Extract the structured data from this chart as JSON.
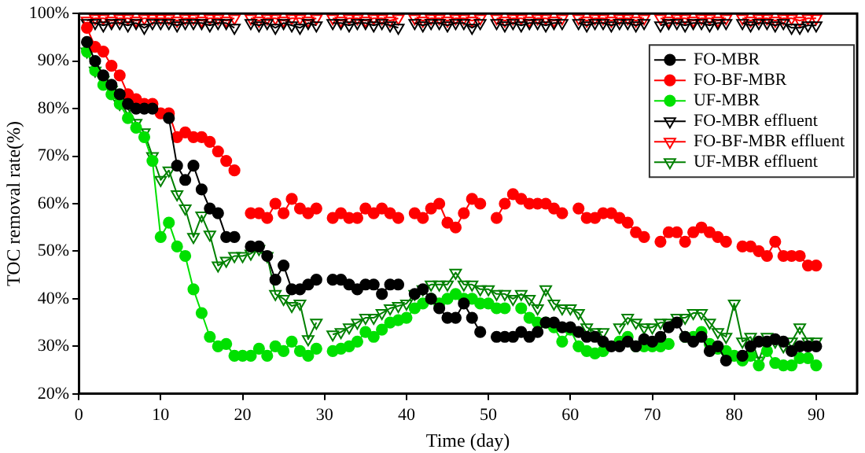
{
  "chart_data": {
    "type": "line",
    "xlabel": "Time (day)",
    "ylabel": "TOC removal rate(%)",
    "xlim": [
      0,
      95
    ],
    "xticks": [
      0,
      10,
      20,
      30,
      40,
      50,
      60,
      70,
      80,
      90
    ],
    "ylim": [
      20,
      100
    ],
    "yticks": [
      {
        "value": 20,
        "label": "20%"
      },
      {
        "value": 30,
        "label": "30%"
      },
      {
        "value": 40,
        "label": "40%"
      },
      {
        "value": 50,
        "label": "50%"
      },
      {
        "value": 60,
        "label": "60%"
      },
      {
        "value": 70,
        "label": "70%"
      },
      {
        "value": 80,
        "label": "80%"
      },
      {
        "value": 90,
        "label": "90%"
      },
      {
        "value": 100,
        "label": "100%"
      }
    ],
    "grid": false,
    "legend": "top right",
    "line_style": "solid",
    "x": [
      1,
      2,
      3,
      4,
      5,
      6,
      7,
      8,
      9,
      10,
      11,
      12,
      13,
      14,
      15,
      16,
      17,
      18,
      19,
      20,
      21,
      22,
      23,
      24,
      25,
      26,
      27,
      28,
      29,
      30,
      31,
      32,
      33,
      34,
      35,
      36,
      37,
      38,
      39,
      40,
      41,
      42,
      43,
      44,
      45,
      46,
      47,
      48,
      49,
      50,
      51,
      52,
      53,
      54,
      55,
      56,
      57,
      58,
      59,
      60,
      61,
      62,
      63,
      64,
      65,
      66,
      67,
      68,
      69,
      70,
      71,
      72,
      73,
      74,
      75,
      76,
      77,
      78,
      79,
      80,
      81,
      82,
      83,
      84,
      85,
      86,
      87,
      88,
      89,
      90
    ],
    "series": [
      {
        "name": "FO-MBR",
        "color": "#000000",
        "marker": "circle",
        "values": [
          94,
          90,
          87,
          85,
          83,
          81,
          80,
          80,
          80,
          null,
          78,
          68,
          65,
          68,
          63,
          59,
          58,
          53,
          53,
          null,
          51,
          51,
          49,
          44,
          47,
          42,
          42,
          43,
          44,
          null,
          44,
          44,
          43,
          42,
          43,
          43,
          41,
          43,
          43,
          null,
          41,
          42,
          40,
          38,
          36,
          36,
          39,
          36,
          33,
          null,
          32,
          32,
          32,
          33,
          32,
          33,
          35,
          35,
          34,
          34,
          33,
          32,
          32,
          31,
          30,
          30,
          31,
          30,
          31.5,
          31,
          32,
          34,
          35,
          32,
          31,
          32,
          29,
          30,
          27,
          null,
          28,
          30,
          31,
          31,
          31.5,
          31,
          29,
          30,
          30,
          30
        ]
      },
      {
        "name": "FO-BF-MBR",
        "color": "#ff0000",
        "marker": "circle",
        "values": [
          97,
          93,
          92,
          89,
          87,
          83,
          82,
          81,
          81,
          79,
          79,
          74,
          75,
          74,
          74,
          73,
          71,
          69,
          67,
          null,
          58,
          58,
          57,
          60,
          58,
          61,
          59,
          58,
          59,
          null,
          57,
          58,
          57,
          57,
          59,
          58,
          59,
          58,
          57,
          null,
          58,
          57,
          59,
          60,
          56,
          55,
          58,
          61,
          60,
          null,
          57,
          60,
          62,
          61,
          60,
          60,
          60,
          59,
          58,
          null,
          59,
          57,
          57,
          58,
          58,
          57,
          56,
          54,
          53,
          null,
          52,
          54,
          54,
          52,
          54,
          55,
          54,
          53,
          52,
          null,
          51,
          51,
          50,
          49,
          52,
          49,
          49,
          49,
          47,
          47
        ]
      },
      {
        "name": "UF-MBR",
        "color": "#00e000",
        "marker": "circle",
        "values": [
          92,
          88,
          85,
          83,
          81,
          78,
          76,
          74,
          69,
          53,
          56,
          51,
          49,
          42,
          37,
          32,
          30,
          30.5,
          28,
          28,
          28,
          29.5,
          28,
          30,
          29,
          31,
          29,
          28,
          29.5,
          null,
          29,
          29.5,
          30,
          31,
          33,
          32,
          33.5,
          35,
          35.5,
          36,
          38,
          39,
          40,
          39,
          40,
          41,
          40,
          40,
          39,
          39,
          38,
          38,
          null,
          38,
          36,
          35,
          35,
          34,
          31,
          33.5,
          30,
          29,
          28.5,
          29,
          null,
          31,
          32,
          30,
          30,
          30,
          30,
          30.5,
          null,
          32,
          32,
          33,
          30.5,
          29.5,
          29,
          28,
          27,
          28,
          26,
          29,
          26.5,
          26,
          26,
          27.5,
          27.5,
          26
        ]
      },
      {
        "name": "FO-MBR effluent",
        "color": "#000000",
        "marker": "triangle",
        "values": [
          98,
          98,
          97.5,
          98,
          98,
          97.5,
          98,
          97,
          98,
          98,
          98,
          97.5,
          98,
          98,
          98,
          97.5,
          98,
          98,
          97,
          null,
          98,
          97.5,
          98,
          97,
          98,
          97.5,
          97,
          98,
          97.5,
          null,
          98,
          98,
          97.5,
          98,
          98,
          97.5,
          98,
          97.5,
          97,
          null,
          98,
          97.5,
          98,
          98,
          97.5,
          98,
          98,
          97,
          98,
          null,
          98,
          97.5,
          98,
          97.5,
          98,
          98,
          97.5,
          98,
          98,
          null,
          98,
          97.5,
          98,
          98,
          97.5,
          98,
          98,
          97.5,
          98,
          null,
          97.5,
          98,
          98,
          97.5,
          98,
          98,
          97.5,
          98,
          98,
          null,
          98,
          97.5,
          98,
          98,
          97.5,
          98,
          97,
          97,
          97.5,
          97.5
        ]
      },
      {
        "name": "FO-BF-MBR effluent",
        "color": "#ff0000",
        "marker": "triangle",
        "values": [
          98.5,
          99,
          99,
          98.5,
          99,
          99,
          98.5,
          99,
          99,
          99,
          99,
          98.5,
          99,
          99,
          98.5,
          99,
          99,
          98.5,
          99,
          null,
          99,
          98.5,
          99,
          99,
          98.5,
          99,
          99,
          98.5,
          99,
          null,
          99,
          98.5,
          99,
          99,
          98.5,
          99,
          99,
          98.5,
          99,
          null,
          99,
          98.5,
          99,
          99,
          98.5,
          99,
          99,
          98.5,
          99,
          null,
          99,
          98.5,
          99,
          99,
          98.5,
          99,
          99,
          98.5,
          99,
          null,
          99,
          98.5,
          99,
          99,
          98.5,
          99,
          99,
          98.5,
          99,
          null,
          99,
          98.5,
          99,
          99,
          98.5,
          99,
          99,
          98.5,
          99,
          null,
          99,
          98.5,
          99,
          99,
          98.5,
          99,
          99,
          98.5,
          99,
          99
        ]
      },
      {
        "name": "UF-MBR effluent",
        "color": "#008000",
        "marker": "triangle",
        "values": [
          92,
          88,
          86,
          84,
          81,
          80,
          77,
          75,
          70,
          65,
          67,
          62,
          59,
          53,
          57.5,
          53.5,
          47,
          48,
          49,
          49,
          49.5,
          50.5,
          49,
          41,
          40,
          38.5,
          39,
          31.5,
          35,
          null,
          32.5,
          33,
          34,
          35,
          36,
          36,
          37,
          38,
          38.5,
          39,
          41,
          42,
          43,
          43,
          43,
          45.5,
          43,
          43,
          42,
          42,
          41,
          41,
          40,
          41,
          40,
          38,
          42,
          39,
          38,
          38,
          37,
          34,
          33,
          33,
          null,
          34,
          36,
          35,
          34,
          34,
          35,
          35,
          36,
          36,
          37,
          37,
          35,
          33,
          32,
          39,
          31,
          32,
          27,
          32,
          31,
          30,
          31,
          34,
          31,
          31
        ]
      }
    ]
  }
}
